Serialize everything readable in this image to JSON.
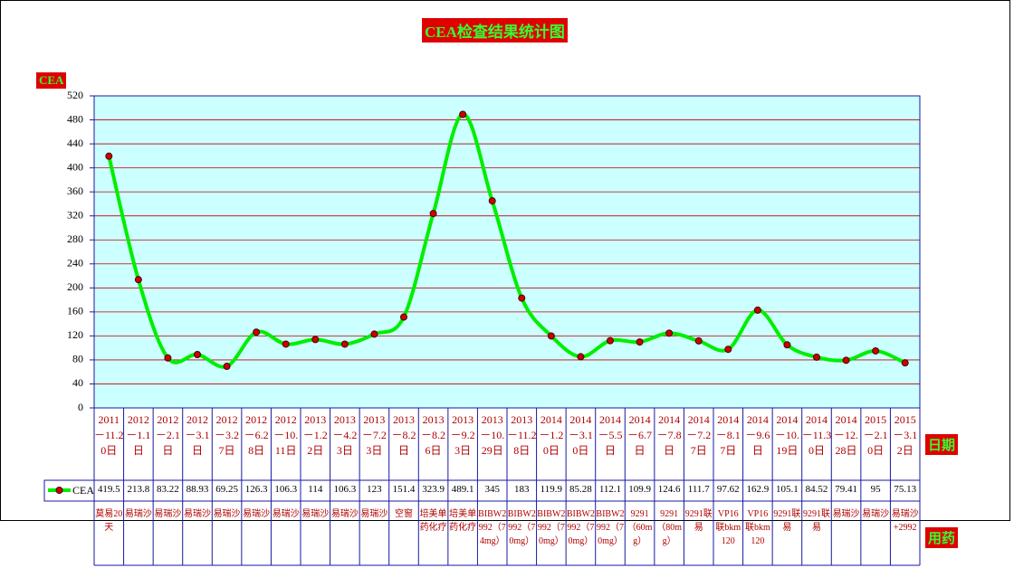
{
  "chart_data": {
    "type": "line",
    "title": "CEA检查结果统计图",
    "y_label": "CEA",
    "x_label": "日期",
    "row_label": "用药",
    "categories": [
      "2011－11.20日",
      "2012－1.1日",
      "2012－2.1日",
      "2012－3.1日",
      "2012－3.27日",
      "2012－6.28日",
      "2012－10.11日",
      "2013－1.22日",
      "2013－4.23日",
      "2013－7.23日",
      "2013－8.2日",
      "2013－8.26日",
      "2013－9.23日",
      "2013－10.29日",
      "2013－11.28日",
      "2014－1.20日",
      "2014－3.10日",
      "2014－5.5日",
      "2014－6.7日",
      "2014－7.8日",
      "2014－7.27日",
      "2014－8.17日",
      "2014－9.6日",
      "2014－10.19日",
      "2014－11.30日",
      "2014－12.28日",
      "2015－2.10日",
      "2015－3.12日"
    ],
    "medications": [
      "莫易20天",
      "易瑞沙",
      "易瑞沙",
      "易瑞沙",
      "易瑞沙",
      "易瑞沙",
      "易瑞沙",
      "易瑞沙",
      "易瑞沙",
      "易瑞沙",
      "空窗",
      "培美单药化疗",
      "培美单药化疗",
      "BIBW2992（74mg）",
      "BIBW2992（70mg）",
      "BIBW2992（70mg）",
      "BIBW2992（70mg）",
      "BIBW2992（70mg）",
      "9291（60mg）",
      "9291（80mg）",
      "9291联易",
      "VP16联bkm120",
      "VP16联bkm120",
      "9291联易",
      "9291联易",
      "易瑞沙",
      "易瑞沙",
      "易瑞沙+2992"
    ],
    "series": [
      {
        "name": "CEA",
        "color": "#00ee00",
        "marker_color": "#cc0000",
        "values": [
          419.5,
          213.8,
          83.22,
          88.93,
          69.25,
          126.3,
          106.3,
          114,
          106.3,
          123,
          151.4,
          323.9,
          489.1,
          345,
          183,
          119.9,
          85.28,
          112.1,
          109.9,
          124.6,
          111.7,
          97.62,
          162.9,
          105.1,
          84.52,
          79.41,
          95,
          75.13
        ]
      }
    ],
    "ylim": [
      0,
      520
    ],
    "yticks": [
      0,
      40,
      80,
      120,
      160,
      200,
      240,
      280,
      320,
      360,
      400,
      440,
      480,
      520
    ],
    "grid": true
  }
}
